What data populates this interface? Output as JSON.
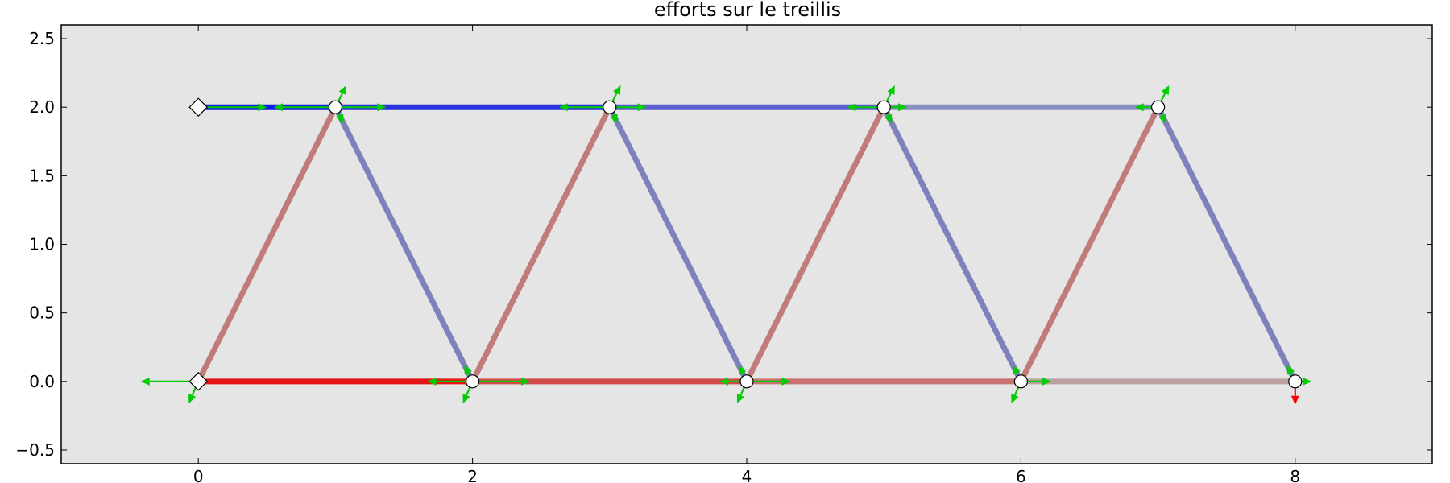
{
  "chart_data": {
    "type": "line",
    "title": "efforts sur le treillis",
    "xlabel": "",
    "ylabel": "",
    "xlim": [
      -1,
      9
    ],
    "ylim": [
      -0.6,
      2.6
    ],
    "xticks": [
      0,
      2,
      4,
      6,
      8
    ],
    "xtick_labels": [
      "0",
      "2",
      "4",
      "6",
      "8"
    ],
    "yticks": [
      -0.5,
      0.0,
      0.5,
      1.0,
      1.5,
      2.0,
      2.5
    ],
    "ytick_labels": [
      "−0.5",
      "0.0",
      "0.5",
      "1.0",
      "1.5",
      "2.0",
      "2.5"
    ],
    "grid": false,
    "plot_background": "#e5e5e5",
    "nodes": [
      {
        "id": "A",
        "x": 0,
        "y": 2,
        "kind": "support"
      },
      {
        "id": "B",
        "x": 0,
        "y": 0,
        "kind": "support"
      },
      {
        "id": "C",
        "x": 1,
        "y": 2,
        "kind": "joint"
      },
      {
        "id": "D",
        "x": 2,
        "y": 0,
        "kind": "joint"
      },
      {
        "id": "E",
        "x": 3,
        "y": 2,
        "kind": "joint"
      },
      {
        "id": "F",
        "x": 4,
        "y": 0,
        "kind": "joint"
      },
      {
        "id": "G",
        "x": 5,
        "y": 2,
        "kind": "joint"
      },
      {
        "id": "H",
        "x": 6,
        "y": 0,
        "kind": "joint"
      },
      {
        "id": "I",
        "x": 7,
        "y": 2,
        "kind": "joint"
      },
      {
        "id": "J",
        "x": 8,
        "y": 0,
        "kind": "joint"
      }
    ],
    "members": [
      {
        "from": [
          0,
          2
        ],
        "to": [
          1,
          2
        ],
        "color": "#0f1ee8"
      },
      {
        "from": [
          1,
          2
        ],
        "to": [
          3,
          2
        ],
        "color": "#2a33de"
      },
      {
        "from": [
          3,
          2
        ],
        "to": [
          5,
          2
        ],
        "color": "#5a5fcf"
      },
      {
        "from": [
          5,
          2
        ],
        "to": [
          7,
          2
        ],
        "color": "#8b8ec0"
      },
      {
        "from": [
          0,
          0
        ],
        "to": [
          2,
          0
        ],
        "color": "#e61414"
      },
      {
        "from": [
          2,
          0
        ],
        "to": [
          4,
          0
        ],
        "color": "#d34a4a"
      },
      {
        "from": [
          4,
          0
        ],
        "to": [
          6,
          0
        ],
        "color": "#c87272"
      },
      {
        "from": [
          6,
          0
        ],
        "to": [
          8,
          0
        ],
        "color": "#bba0a0"
      },
      {
        "from": [
          0,
          0
        ],
        "to": [
          1,
          2
        ],
        "color": "#c07b7b"
      },
      {
        "from": [
          1,
          2
        ],
        "to": [
          2,
          0
        ],
        "color": "#7f81bd"
      },
      {
        "from": [
          2,
          0
        ],
        "to": [
          3,
          2
        ],
        "color": "#c07b7b"
      },
      {
        "from": [
          3,
          2
        ],
        "to": [
          4,
          0
        ],
        "color": "#7f81bd"
      },
      {
        "from": [
          4,
          0
        ],
        "to": [
          5,
          2
        ],
        "color": "#c07b7b"
      },
      {
        "from": [
          5,
          2
        ],
        "to": [
          6,
          0
        ],
        "color": "#7f81bd"
      },
      {
        "from": [
          6,
          0
        ],
        "to": [
          7,
          2
        ],
        "color": "#c07b7b"
      },
      {
        "from": [
          7,
          2
        ],
        "to": [
          8,
          0
        ],
        "color": "#7f81bd"
      }
    ],
    "force_arrows": [
      {
        "x": 0,
        "y": 2,
        "dx": 0.5,
        "dy": 0,
        "color": "#00cc00"
      },
      {
        "x": 1,
        "y": 2,
        "dx": -0.45,
        "dy": 0,
        "color": "#00cc00"
      },
      {
        "x": 1,
        "y": 2,
        "dx": 0.37,
        "dy": 0,
        "color": "#00cc00"
      },
      {
        "x": 1,
        "y": 2,
        "dx": 0.08,
        "dy": 0.16,
        "color": "#00cc00"
      },
      {
        "x": 1,
        "y": 2,
        "dx": 0.06,
        "dy": -0.12,
        "color": "#00cc00"
      },
      {
        "x": 3,
        "y": 2,
        "dx": -0.37,
        "dy": 0,
        "color": "#00cc00"
      },
      {
        "x": 3,
        "y": 2,
        "dx": 0.27,
        "dy": 0,
        "color": "#00cc00"
      },
      {
        "x": 3,
        "y": 2,
        "dx": 0.08,
        "dy": 0.16,
        "color": "#00cc00"
      },
      {
        "x": 3,
        "y": 2,
        "dx": 0.06,
        "dy": -0.12,
        "color": "#00cc00"
      },
      {
        "x": 5,
        "y": 2,
        "dx": -0.27,
        "dy": 0,
        "color": "#00cc00"
      },
      {
        "x": 5,
        "y": 2,
        "dx": 0.17,
        "dy": 0,
        "color": "#00cc00"
      },
      {
        "x": 5,
        "y": 2,
        "dx": 0.08,
        "dy": 0.16,
        "color": "#00cc00"
      },
      {
        "x": 5,
        "y": 2,
        "dx": 0.06,
        "dy": -0.12,
        "color": "#00cc00"
      },
      {
        "x": 7,
        "y": 2,
        "dx": -0.17,
        "dy": 0,
        "color": "#00cc00"
      },
      {
        "x": 7,
        "y": 2,
        "dx": 0.08,
        "dy": 0.16,
        "color": "#00cc00"
      },
      {
        "x": 7,
        "y": 2,
        "dx": 0.06,
        "dy": -0.12,
        "color": "#00cc00"
      },
      {
        "x": 0,
        "y": 0,
        "dx": -0.42,
        "dy": 0,
        "color": "#00cc00"
      },
      {
        "x": 0,
        "y": 0,
        "dx": -0.07,
        "dy": -0.16,
        "color": "#00cc00"
      },
      {
        "x": 2,
        "y": 0,
        "dx": -0.33,
        "dy": 0,
        "color": "#00cc00"
      },
      {
        "x": 2,
        "y": 0,
        "dx": 0.42,
        "dy": 0,
        "color": "#00cc00"
      },
      {
        "x": 2,
        "y": 0,
        "dx": -0.07,
        "dy": -0.16,
        "color": "#00cc00"
      },
      {
        "x": 2,
        "y": 0,
        "dx": -0.06,
        "dy": 0.12,
        "color": "#00cc00"
      },
      {
        "x": 4,
        "y": 0,
        "dx": -0.2,
        "dy": 0,
        "color": "#00cc00"
      },
      {
        "x": 4,
        "y": 0,
        "dx": 0.32,
        "dy": 0,
        "color": "#00cc00"
      },
      {
        "x": 4,
        "y": 0,
        "dx": -0.07,
        "dy": -0.16,
        "color": "#00cc00"
      },
      {
        "x": 4,
        "y": 0,
        "dx": -0.06,
        "dy": 0.12,
        "color": "#00cc00"
      },
      {
        "x": 6,
        "y": 0,
        "dx": 0.22,
        "dy": 0,
        "color": "#00cc00"
      },
      {
        "x": 6,
        "y": 0,
        "dx": -0.07,
        "dy": -0.16,
        "color": "#00cc00"
      },
      {
        "x": 6,
        "y": 0,
        "dx": -0.06,
        "dy": 0.12,
        "color": "#00cc00"
      },
      {
        "x": 8,
        "y": 0,
        "dx": 0.12,
        "dy": 0,
        "color": "#00cc00"
      },
      {
        "x": 8,
        "y": 0,
        "dx": -0.06,
        "dy": 0.12,
        "color": "#00cc00"
      },
      {
        "x": 8,
        "y": 0,
        "dx": 0,
        "dy": -0.17,
        "color": "#ff0000"
      }
    ]
  }
}
